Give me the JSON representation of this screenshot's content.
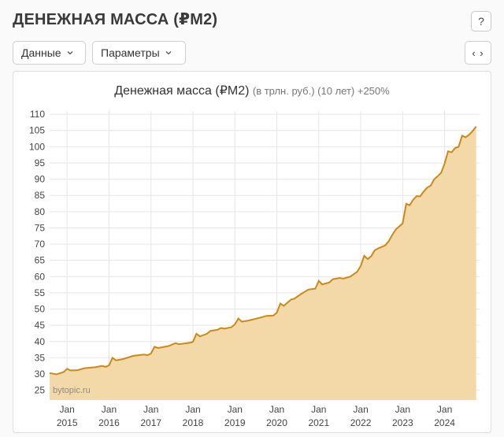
{
  "header": {
    "title": "ДЕНЕЖНАЯ МАССА (₽M2)",
    "help_label": "?"
  },
  "toolbar": {
    "data_label": "Данные",
    "params_label": "Параметры",
    "embed_label": "‹ ›"
  },
  "chart": {
    "title": "Денежная масса (₽M2)",
    "subtitle": "(в трлн. руб.) (10 лет) +250%",
    "watermark": "bytopic.ru"
  },
  "colors": {
    "line": "#c88a1a",
    "fill": "#f3d9a8",
    "grid": "#e6e6e6",
    "accent": "#333333"
  },
  "chart_data": {
    "type": "area",
    "ylim": [
      22,
      111
    ],
    "yticks": [
      25,
      30,
      35,
      40,
      45,
      50,
      55,
      60,
      65,
      70,
      75,
      80,
      85,
      90,
      95,
      100,
      105,
      110
    ],
    "xticks": [
      {
        "year": 2015,
        "month": "Jan",
        "label": "2015"
      },
      {
        "year": 2016,
        "month": "Jan",
        "label": "2016"
      },
      {
        "year": 2017,
        "month": "Jan",
        "label": "2017"
      },
      {
        "year": 2018,
        "month": "Jan",
        "label": "2018"
      },
      {
        "year": 2019,
        "month": "Jan",
        "label": "2019"
      },
      {
        "year": 2020,
        "month": "Jan",
        "label": "2020"
      },
      {
        "year": 2021,
        "month": "Jan",
        "label": "2021"
      },
      {
        "year": 2022,
        "month": "Jan",
        "label": "2022"
      },
      {
        "year": 2023,
        "month": "Jan",
        "label": "2023"
      },
      {
        "year": 2024,
        "month": "Jan",
        "label": "2024"
      }
    ],
    "series": [
      {
        "points": [
          [
            "2014-08",
            30.3
          ],
          [
            "2014-10",
            29.9
          ],
          [
            "2014-12",
            30.6
          ],
          [
            "2015-01",
            31.6
          ],
          [
            "2015-02",
            31.1
          ],
          [
            "2015-04",
            31.2
          ],
          [
            "2015-06",
            31.8
          ],
          [
            "2015-09",
            32.1
          ],
          [
            "2015-11",
            32.5
          ],
          [
            "2015-12",
            32.2
          ],
          [
            "2016-01",
            32.7
          ],
          [
            "2016-02",
            35.0
          ],
          [
            "2016-03",
            34.2
          ],
          [
            "2016-05",
            34.6
          ],
          [
            "2016-08",
            35.6
          ],
          [
            "2016-11",
            36.0
          ],
          [
            "2016-12",
            35.8
          ],
          [
            "2017-01",
            36.3
          ],
          [
            "2017-02",
            38.4
          ],
          [
            "2017-03",
            38.0
          ],
          [
            "2017-06",
            38.6
          ],
          [
            "2017-08",
            39.5
          ],
          [
            "2017-09",
            39.2
          ],
          [
            "2017-12",
            39.6
          ],
          [
            "2018-01",
            39.9
          ],
          [
            "2018-02",
            42.4
          ],
          [
            "2018-03",
            41.6
          ],
          [
            "2018-05",
            42.4
          ],
          [
            "2018-06",
            43.3
          ],
          [
            "2018-08",
            43.6
          ],
          [
            "2018-09",
            44.2
          ],
          [
            "2018-10",
            44.0
          ],
          [
            "2018-12",
            44.4
          ],
          [
            "2019-01",
            45.3
          ],
          [
            "2019-02",
            47.1
          ],
          [
            "2019-03",
            46.1
          ],
          [
            "2019-05",
            46.5
          ],
          [
            "2019-08",
            47.3
          ],
          [
            "2019-10",
            47.9
          ],
          [
            "2019-12",
            48.0
          ],
          [
            "2020-01",
            48.9
          ],
          [
            "2020-02",
            51.7
          ],
          [
            "2020-03",
            51.0
          ],
          [
            "2020-05",
            52.9
          ],
          [
            "2020-06",
            53.2
          ],
          [
            "2020-08",
            54.7
          ],
          [
            "2020-10",
            56.0
          ],
          [
            "2020-12",
            56.3
          ],
          [
            "2021-01",
            58.7
          ],
          [
            "2021-02",
            57.6
          ],
          [
            "2021-04",
            58.2
          ],
          [
            "2021-05",
            59.2
          ],
          [
            "2021-07",
            59.6
          ],
          [
            "2021-08",
            59.4
          ],
          [
            "2021-10",
            60.0
          ],
          [
            "2021-12",
            61.5
          ],
          [
            "2022-01",
            63.3
          ],
          [
            "2022-02",
            66.4
          ],
          [
            "2022-03",
            65.4
          ],
          [
            "2022-04",
            66.3
          ],
          [
            "2022-05",
            68.1
          ],
          [
            "2022-06",
            68.7
          ],
          [
            "2022-08",
            69.6
          ],
          [
            "2022-09",
            70.9
          ],
          [
            "2022-10",
            72.8
          ],
          [
            "2022-11",
            74.5
          ],
          [
            "2023-01",
            76.4
          ],
          [
            "2023-02",
            82.4
          ],
          [
            "2023-03",
            82.0
          ],
          [
            "2023-04",
            83.7
          ],
          [
            "2023-05",
            84.8
          ],
          [
            "2023-06",
            84.7
          ],
          [
            "2023-07",
            86.2
          ],
          [
            "2023-08",
            87.4
          ],
          [
            "2023-09",
            88.0
          ],
          [
            "2023-10",
            90.0
          ],
          [
            "2023-11",
            90.9
          ],
          [
            "2023-12",
            92.0
          ],
          [
            "2024-01",
            94.8
          ],
          [
            "2024-02",
            98.6
          ],
          [
            "2024-03",
            98.3
          ],
          [
            "2024-04",
            99.6
          ],
          [
            "2024-05",
            100.0
          ],
          [
            "2024-06",
            103.4
          ],
          [
            "2024-07",
            102.9
          ],
          [
            "2024-08",
            103.7
          ],
          [
            "2024-09",
            104.8
          ],
          [
            "2024-10",
            106.2
          ]
        ]
      }
    ]
  }
}
